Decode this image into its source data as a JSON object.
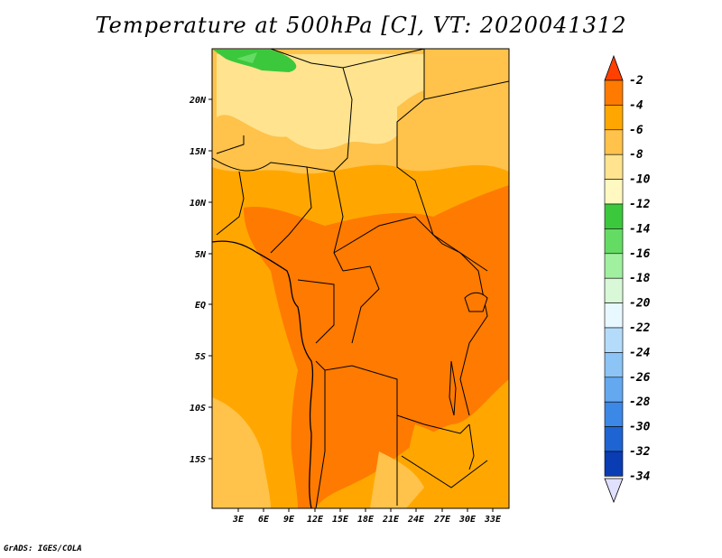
{
  "title": "Temperature at 500hPa [C], VT: 2020041312",
  "credit": "GrADS: IGES/COLA",
  "lat_ticks": [
    "20N",
    "15N",
    "10N",
    "5N",
    "EQ",
    "5S",
    "10S",
    "15S"
  ],
  "lon_ticks": [
    "3E",
    "6E",
    "9E",
    "12E",
    "15E",
    "18E",
    "21E",
    "24E",
    "27E",
    "30E",
    "33E"
  ],
  "colorbar": {
    "labels": [
      "-2",
      "-4",
      "-6",
      "-8",
      "-10",
      "-12",
      "-14",
      "-16",
      "-18",
      "-20",
      "-22",
      "-24",
      "-26",
      "-28",
      "-30",
      "-32",
      "-34"
    ],
    "colors": [
      "#ff4000",
      "#ff7a00",
      "#ffa700",
      "#ffc24a",
      "#ffe38f",
      "#fff8c0",
      "#3cc83c",
      "#64dc64",
      "#a0f0a0",
      "#d8f8d8",
      "#e8f8ff",
      "#b4dcfa",
      "#8cc4f6",
      "#64a8f0",
      "#3c88e6",
      "#1e64d2",
      "#0a3cb4",
      "#000a64"
    ],
    "arrow_top_color": "#ff4000",
    "arrow_bottom_color": "#e0e0ff"
  },
  "map_regions": [
    {
      "name": "land-warm-north",
      "color": "#ffa700"
    },
    {
      "name": "land-core",
      "color": "#ff7a00"
    },
    {
      "name": "sahara-band",
      "color": "#ffc24a"
    },
    {
      "name": "sahara-cool",
      "color": "#ffe38f"
    },
    {
      "name": "green-patch",
      "color": "#3cc83c"
    }
  ]
}
